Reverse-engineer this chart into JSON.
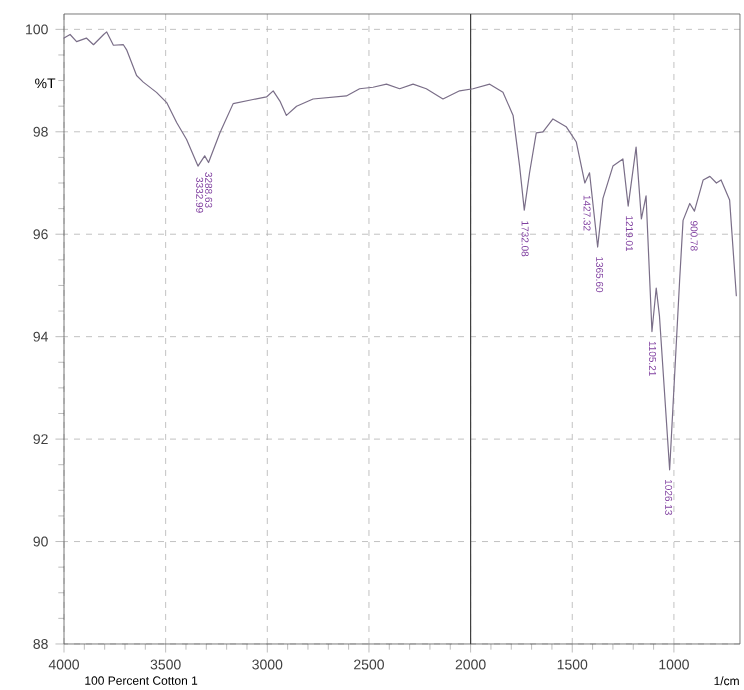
{
  "chart_data": {
    "type": "line",
    "ylabel": "%T",
    "xlabel": "1/cm",
    "xlim": [
      4000,
      675
    ],
    "ylim": [
      88,
      100.3
    ],
    "xticks": [
      4000,
      3500,
      3000,
      2500,
      2000,
      1500,
      1000
    ],
    "yticks": [
      88,
      90,
      92,
      94,
      96,
      98,
      100
    ],
    "grid": true,
    "ref_lines": [
      {
        "axis": "x",
        "value": 2000,
        "color": "#404040"
      }
    ],
    "series": [
      {
        "color": "#7a6e88",
        "x": [
          4000,
          3970,
          3938,
          3890,
          3855,
          3805,
          3790,
          3757,
          3708,
          3692,
          3643,
          3610,
          3545,
          3495,
          3446,
          3397,
          3341,
          3308,
          3289,
          3233,
          3168,
          3070,
          3004,
          2971,
          2938,
          2906,
          2856,
          2775,
          2611,
          2546,
          2480,
          2414,
          2349,
          2283,
          2218,
          2136,
          2054,
          1988,
          1906,
          1841,
          1791,
          1759,
          1736,
          1710,
          1677,
          1644,
          1595,
          1530,
          1480,
          1438,
          1415,
          1375,
          1349,
          1300,
          1251,
          1225,
          1186,
          1160,
          1137,
          1108,
          1087,
          1071,
          1021,
          972,
          955,
          922,
          899,
          856,
          823,
          791,
          768,
          726,
          693
        ],
        "values": [
          99.83,
          99.9,
          99.76,
          99.83,
          99.7,
          99.9,
          99.95,
          99.69,
          99.7,
          99.6,
          99.1,
          98.97,
          98.77,
          98.57,
          98.18,
          97.85,
          97.33,
          97.53,
          97.4,
          97.98,
          98.55,
          98.63,
          98.68,
          98.8,
          98.6,
          98.32,
          98.5,
          98.64,
          98.7,
          98.84,
          98.87,
          98.93,
          98.84,
          98.93,
          98.84,
          98.64,
          98.8,
          98.84,
          98.93,
          98.77,
          98.32,
          97.33,
          96.47,
          97.2,
          97.98,
          98.0,
          98.25,
          98.1,
          97.8,
          97.0,
          97.2,
          95.75,
          96.7,
          97.33,
          97.47,
          96.55,
          97.7,
          96.3,
          96.75,
          94.1,
          94.95,
          94.4,
          91.4,
          95.09,
          96.27,
          96.6,
          96.45,
          97.06,
          97.13,
          97.0,
          97.06,
          96.67,
          94.8
        ]
      }
    ],
    "annotations": [
      "100 Percent Cotton 1",
      {
        "text": "3332.99",
        "x": 3332.99,
        "y": 97.3
      },
      {
        "text": "3288.63",
        "x": 3288.63,
        "y": 97.4
      },
      {
        "text": "1732.08",
        "x": 1732.08,
        "y": 96.45
      },
      {
        "text": "1427.32",
        "x": 1427.32,
        "y": 96.95
      },
      {
        "text": "1365.60",
        "x": 1365.6,
        "y": 95.75
      },
      {
        "text": "1219.01",
        "x": 1219.01,
        "y": 96.55
      },
      {
        "text": "1105.21",
        "x": 1105.21,
        "y": 94.1
      },
      {
        "text": "1026.13",
        "x": 1026.13,
        "y": 91.4
      },
      {
        "text": "900.78",
        "x": 900.78,
        "y": 96.45
      }
    ]
  }
}
